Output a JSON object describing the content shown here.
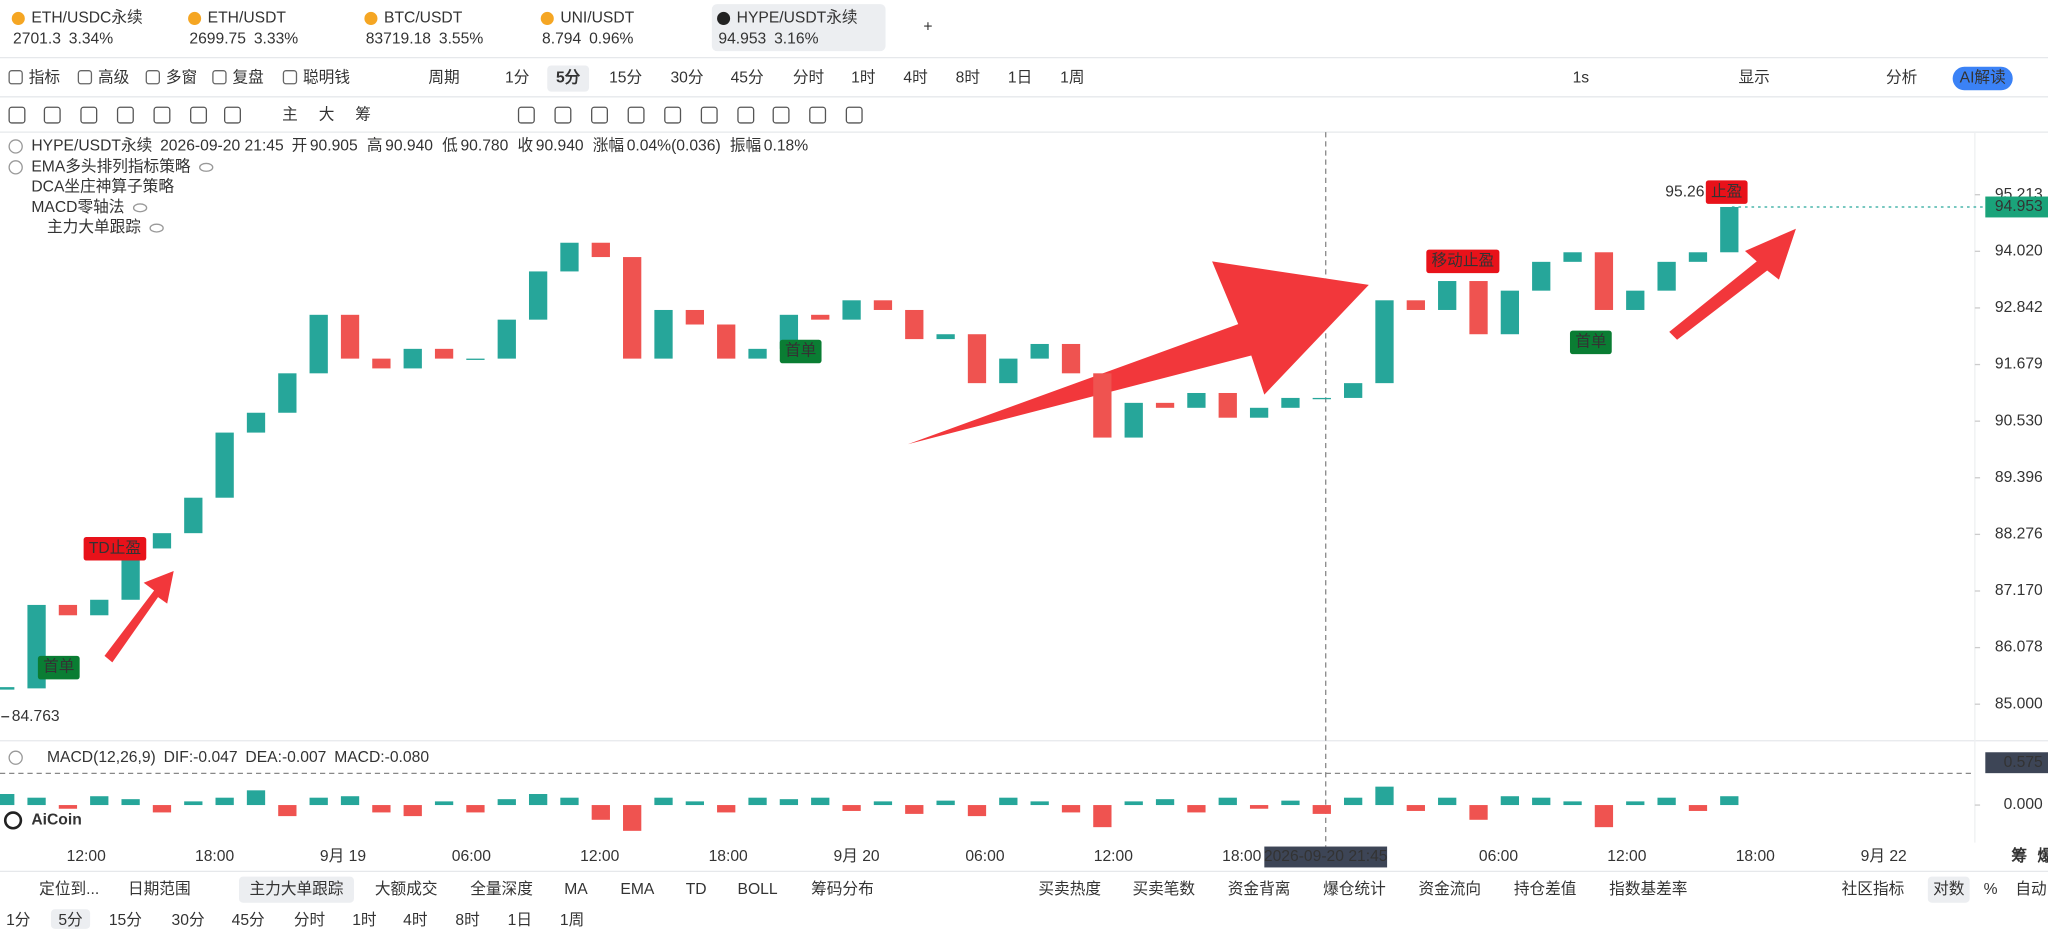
{
  "tabs": [
    {
      "name": "ETH/USDC永续",
      "price": "2701.3",
      "change": "3.34%",
      "color": "#e8333a"
    },
    {
      "name": "ETH/USDT",
      "price": "2699.75",
      "change": "3.33%",
      "color": "#1aa37a"
    },
    {
      "name": "BTC/USDT",
      "price": "83719.18",
      "change": "3.55%",
      "color": "#222222"
    },
    {
      "name": "UNI/USDT",
      "price": "8.794",
      "change": "0.96%",
      "color": "#1aa37a"
    },
    {
      "name": "HYPE/USDT永续",
      "price": "94.953",
      "change": "3.16%",
      "color": "#e8333a"
    }
  ],
  "toolbar": {
    "left": [
      "指标",
      "高级",
      "多窗",
      "复盘",
      "聪明钱"
    ],
    "period_label": "周期",
    "periods": [
      "1分",
      "5分",
      "15分",
      "30分",
      "45分",
      "分时",
      "1时",
      "4时",
      "8时",
      "1日",
      "1周"
    ],
    "active_period": 1,
    "right": [
      "1s",
      "显示",
      "分析"
    ],
    "ai": "AI解读"
  },
  "drawing_tools": [
    "主",
    "大",
    "筹"
  ],
  "info": {
    "symbol": "HYPE/USDT永续",
    "time": "2026-09-20 21:45",
    "fields": [
      {
        "label": "开",
        "value": "90.905"
      },
      {
        "label": "高",
        "value": "90.940"
      },
      {
        "label": "低",
        "value": "90.780"
      },
      {
        "label": "收",
        "value": "90.940"
      },
      {
        "label": "涨幅",
        "value": "0.04%(0.036)"
      },
      {
        "label": "振幅",
        "value": "0.18%"
      }
    ]
  },
  "indicators": [
    "EMA多头排列指标策略",
    "DCA坐庄神算子策略",
    "MACD零轴法",
    "主力大单跟踪"
  ],
  "chart_data": [
    {
      "type": "candlestick",
      "up_color": "#26a69a",
      "down_color": "#ef5350",
      "log": true,
      "grid": false,
      "close": [
        85.3,
        86.9,
        86.7,
        87.0,
        88.0,
        88.3,
        89.0,
        90.3,
        90.7,
        91.5,
        92.7,
        91.8,
        91.6,
        92.0,
        91.8,
        91.8,
        92.6,
        93.6,
        94.2,
        93.9,
        91.8,
        92.8,
        92.5,
        91.8,
        92.0,
        92.7,
        92.6,
        93.0,
        92.8,
        92.2,
        92.3,
        91.3,
        91.8,
        92.1,
        91.5,
        90.2,
        90.9,
        90.8,
        91.1,
        90.6,
        90.8,
        91.0,
        91.0,
        91.3,
        93.0,
        92.8,
        93.4,
        92.3,
        93.2,
        93.8,
        94.0,
        92.8,
        93.2,
        93.8,
        94.0,
        94.953
      ],
      "ylim": [
        84.36,
        96.55
      ],
      "yticks": [
        95.213,
        {
          "value": 94.02,
          "label": "94.020"
        },
        92.842,
        91.679,
        {
          "value": 90.53,
          "label": "90.530"
        },
        89.396,
        88.276,
        {
          "value": 87.17,
          "label": "87.170"
        },
        86.078,
        {
          "value": 85,
          "label": "85.000"
        }
      ],
      "last_price": 94.953,
      "high_label": 95.26,
      "low_label": 84.763,
      "markers": [
        "首单",
        "TD止盈",
        "首单",
        "移动止盈",
        "首单",
        "止盈"
      ],
      "time_labels": [
        "12:00",
        "18:00",
        "9月 19",
        "06:00",
        "12:00",
        "18:00",
        "9月 20",
        "06:00",
        "12:00",
        "18:00",
        null,
        "06:00",
        "12:00",
        "18:00",
        "9月 22"
      ],
      "crosshair_time": "2026-09-20 21:45",
      "axis_extra": [
        "筹",
        "爆"
      ]
    },
    {
      "type": "bar",
      "title": "MACD(12,26,9)",
      "legend": [
        {
          "text": "DIF:-0.047",
          "color": "#26a69a"
        },
        {
          "text": "DEA:-0.007",
          "color": "#f5a623"
        },
        {
          "text": "MACD:-0.080",
          "color": "#ef5350"
        }
      ],
      "up_color": "#26a69a",
      "down_color": "#ef5350",
      "values": [
        0.15,
        0.1,
        -0.05,
        0.12,
        0.08,
        -0.1,
        0.05,
        0.1,
        0.2,
        -0.15,
        0.1,
        0.12,
        -0.1,
        -0.15,
        0.05,
        -0.1,
        0.08,
        0.15,
        0.1,
        -0.2,
        -0.35,
        0.1,
        0.05,
        -0.1,
        0.1,
        0.08,
        0.1,
        -0.08,
        0.05,
        -0.12,
        0.06,
        -0.15,
        0.1,
        0.05,
        -0.1,
        -0.3,
        0.05,
        0.08,
        -0.1,
        0.1,
        -0.05,
        0.06,
        -0.12,
        0.1,
        0.25,
        -0.08,
        0.1,
        -0.2,
        0.12,
        0.1,
        0.05,
        -0.3,
        0.05,
        0.1,
        -0.08,
        0.12
      ],
      "ylim": [
        -0.51,
        0.82
      ],
      "yticks": [
        {
          "value": 0,
          "label": "0.000"
        }
      ],
      "crosshair_value": 0.575
    }
  ],
  "logo": "AiCoin",
  "bottom_bar": {
    "left": [
      "定位到...",
      "日期范围"
    ],
    "indicators": [
      "主力大单跟踪",
      "大额成交",
      "全量深度",
      "MA",
      "EMA",
      "TD",
      "BOLL",
      "筹码分布"
    ],
    "stats": [
      "买卖热度",
      "买卖笔数",
      "资金背离",
      "爆仓统计",
      "资金流向",
      "持仓差值",
      "指数基差率"
    ],
    "right": [
      "社区指标",
      "对数",
      "%",
      "自动"
    ]
  },
  "period_bar": [
    "1分",
    "5分",
    "15分",
    "30分",
    "45分",
    "分时",
    "1时",
    "4时",
    "8时",
    "1日",
    "1周"
  ]
}
